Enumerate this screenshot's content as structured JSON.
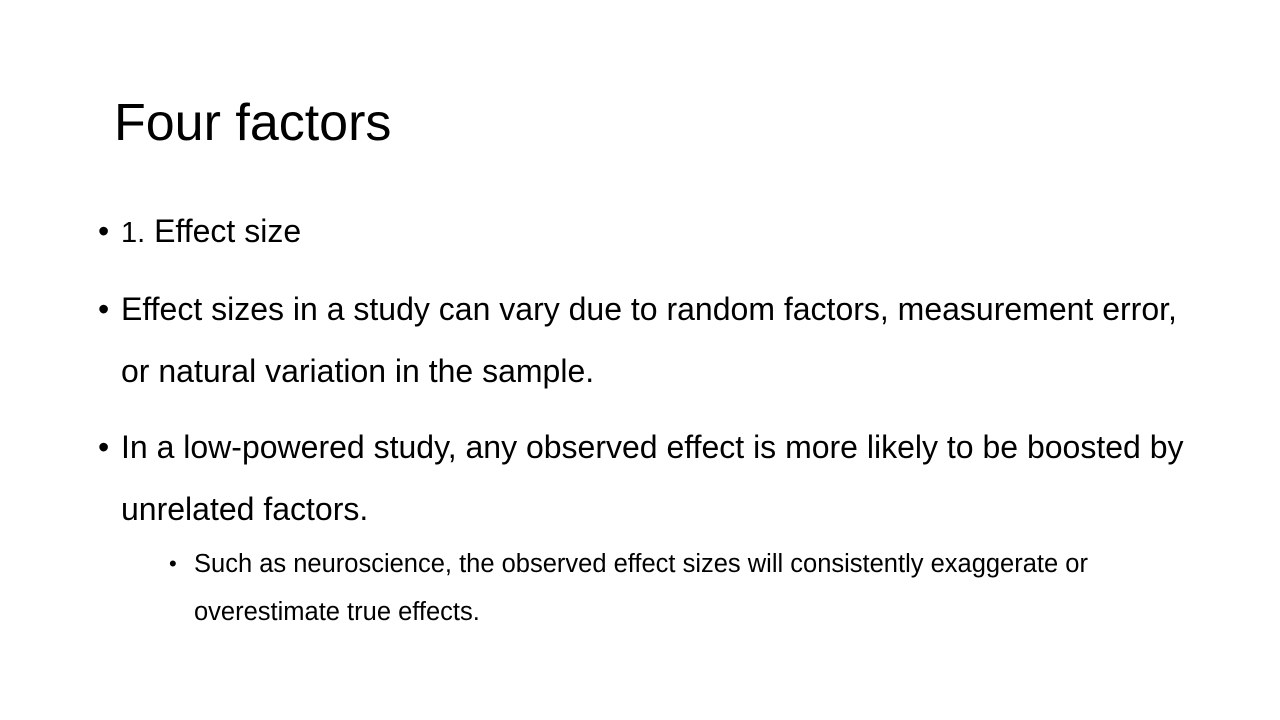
{
  "slide": {
    "title": "Four factors",
    "bullets": [
      {
        "marker": "•",
        "number": "1.",
        "text": "Effect size"
      },
      {
        "marker": "•",
        "text": "Effect sizes in a study can vary due to random factors, measurement error, or natural variation in the sample."
      },
      {
        "marker": "•",
        "text": "In a low-powered study, any observed effect is more likely to be boosted by unrelated factors."
      }
    ],
    "sub_bullets": [
      {
        "marker": "•",
        "text": "Such as neuroscience, the observed effect sizes will consistently exaggerate or overestimate true effects."
      }
    ]
  }
}
